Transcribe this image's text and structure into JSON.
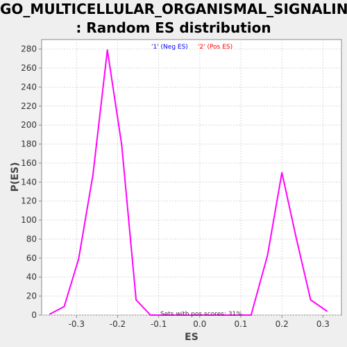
{
  "chart_data": {
    "type": "line",
    "title_line1": "GO_MULTICELLULAR_ORGANISMAL_SIGNALING",
    "title_line2": ": Random ES distribution",
    "xlabel": "ES",
    "ylabel": "P(ES)",
    "xlim": [
      -0.385,
      0.345
    ],
    "ylim": [
      0,
      290
    ],
    "x_ticks": [
      -0.3,
      -0.2,
      -0.1,
      0.0,
      0.1,
      0.2,
      0.3
    ],
    "x_tick_labels": [
      "-0.3",
      "-0.2",
      "-0.1",
      "0.0",
      "0.1",
      "0.2",
      "0.3"
    ],
    "y_ticks": [
      0,
      20,
      40,
      60,
      80,
      100,
      120,
      140,
      160,
      180,
      200,
      220,
      240,
      260,
      280
    ],
    "y_tick_labels": [
      "0",
      "20",
      "40",
      "60",
      "80",
      "100",
      "120",
      "140",
      "160",
      "180",
      "200",
      "220",
      "240",
      "260",
      "280"
    ],
    "grid": true,
    "legend": {
      "placement": "top",
      "entries": [
        {
          "label": "'1' (Neg ES)",
          "color": "#0000ff"
        },
        {
          "label": "'2' (Pos ES)",
          "color": "#ff0000"
        }
      ]
    },
    "annotation": "Sets with pos scores: 31%",
    "line_color": "#ff00ff",
    "series": [
      {
        "x": [
          -0.365,
          -0.33,
          -0.295,
          -0.26,
          -0.225,
          -0.19,
          -0.155,
          -0.12,
          -0.085,
          -0.05,
          -0.015,
          0.02,
          0.055,
          0.09,
          0.125,
          0.165,
          0.2,
          0.235,
          0.27,
          0.31
        ],
        "values": [
          1,
          9,
          59,
          148,
          279,
          179,
          16,
          0,
          0,
          0,
          0,
          0,
          0,
          0,
          0,
          63,
          150,
          81,
          16,
          4
        ]
      }
    ]
  }
}
